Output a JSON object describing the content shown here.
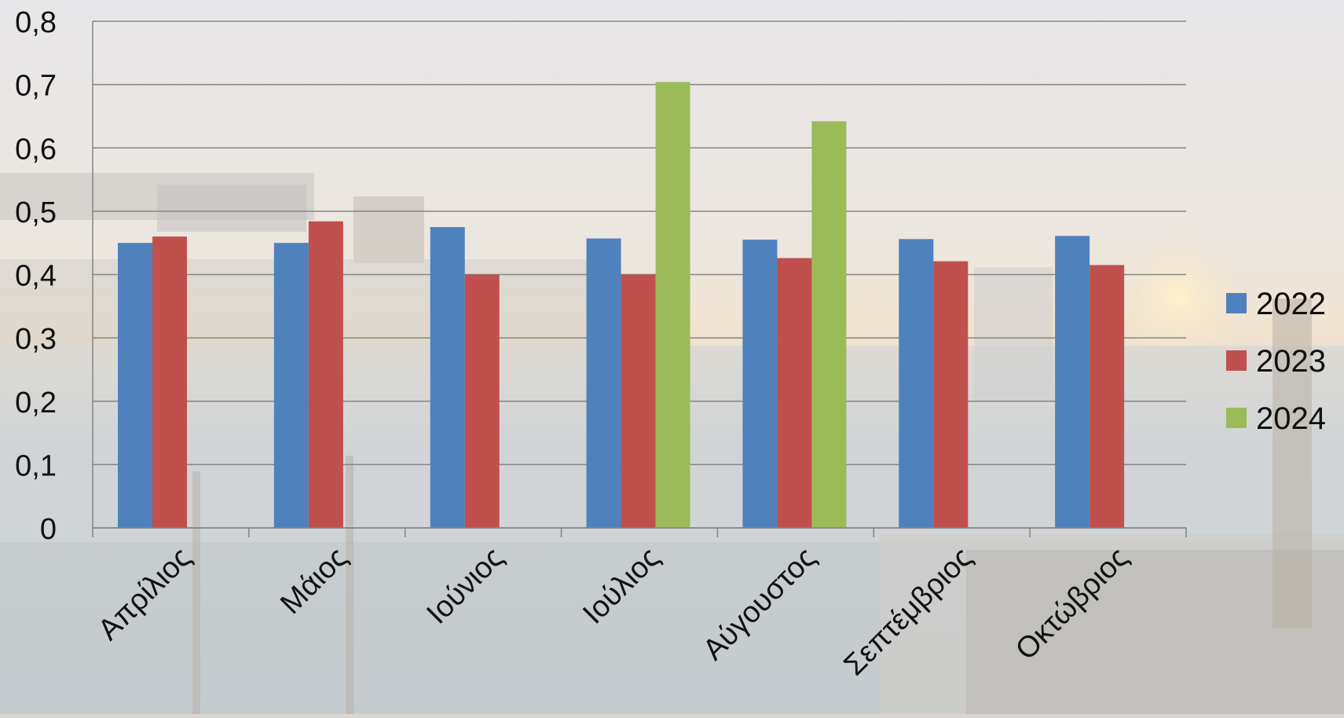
{
  "chart_data": {
    "type": "bar",
    "title": "",
    "xlabel": "",
    "ylabel": "",
    "ylim": [
      0,
      0.8
    ],
    "yticks": [
      "0",
      "0,1",
      "0,2",
      "0,3",
      "0,4",
      "0,5",
      "0,6",
      "0,7",
      "0,8"
    ],
    "grid": true,
    "legend_position": "right",
    "categories": [
      "Απρίλιος",
      "Μάιος",
      "Ιούνιος",
      "Ιούλιος",
      "Αύγουστος",
      "Σεπτέμβριος",
      "Οκτώβριος"
    ],
    "series": [
      {
        "name": "2022",
        "color": "#4f81bd",
        "values": [
          0.45,
          0.45,
          0.475,
          0.457,
          0.455,
          0.456,
          0.461
        ]
      },
      {
        "name": "2023",
        "color": "#c0504d",
        "values": [
          0.46,
          0.484,
          0.4,
          0.4,
          0.426,
          0.421,
          0.415
        ]
      },
      {
        "name": "2024",
        "color": "#9bbb59",
        "values": [
          null,
          null,
          null,
          0.704,
          0.642,
          null,
          null
        ]
      }
    ]
  }
}
